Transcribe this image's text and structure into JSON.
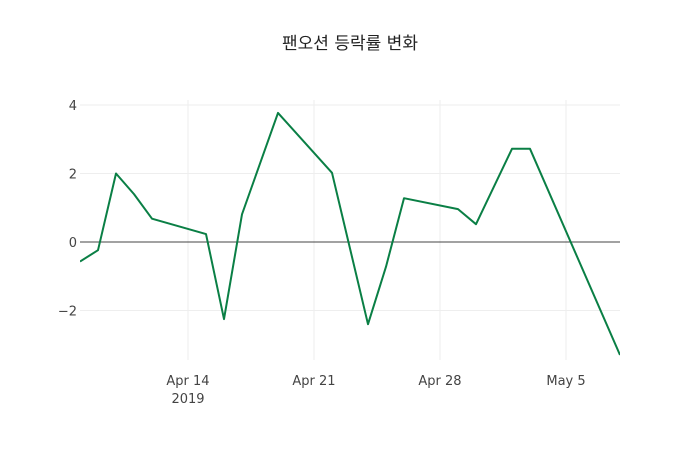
{
  "chart_data": {
    "type": "line",
    "title": "팬오션 등락률 변화",
    "xlabel": "",
    "ylabel": "",
    "x_range": [
      "2019-04-08",
      "2019-05-08"
    ],
    "ylim": [
      -3.35,
      4.2
    ],
    "grid": true,
    "x_ticks": [
      {
        "date": "2019-04-14",
        "label": "Apr 14",
        "sublabel": "2019"
      },
      {
        "date": "2019-04-21",
        "label": "Apr 21",
        "sublabel": ""
      },
      {
        "date": "2019-04-28",
        "label": "Apr 28",
        "sublabel": ""
      },
      {
        "date": "2019-05-05",
        "label": "May 5",
        "sublabel": ""
      }
    ],
    "y_ticks": [
      {
        "value": 4,
        "label": "4"
      },
      {
        "value": 2,
        "label": "2"
      },
      {
        "value": 0,
        "label": "0"
      },
      {
        "value": -2,
        "label": "−2"
      }
    ],
    "series": [
      {
        "name": "등락률",
        "color": "#0a7f45",
        "x": [
          "2019-04-08",
          "2019-04-09",
          "2019-04-10",
          "2019-04-11",
          "2019-04-12",
          "2019-04-15",
          "2019-04-16",
          "2019-04-17",
          "2019-04-18",
          "2019-04-19",
          "2019-04-22",
          "2019-04-23",
          "2019-04-24",
          "2019-04-25",
          "2019-04-26",
          "2019-04-29",
          "2019-04-30",
          "2019-05-02",
          "2019-05-03",
          "2019-05-08"
        ],
        "y": [
          -0.57,
          -0.24,
          2.0,
          1.4,
          0.68,
          0.23,
          -2.25,
          0.81,
          2.29,
          3.77,
          2.02,
          -0.19,
          -2.4,
          -0.72,
          1.28,
          0.96,
          0.52,
          2.72,
          2.72,
          -3.3
        ]
      }
    ]
  }
}
